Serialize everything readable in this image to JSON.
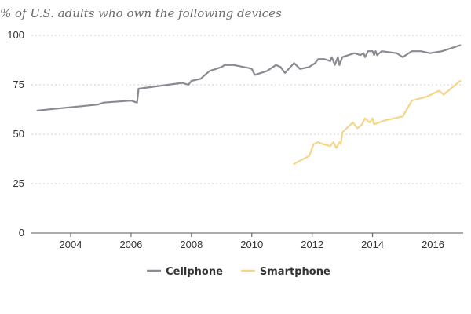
{
  "chart_data": {
    "type": "line",
    "subtitle": "% of U.S. adults who own the following devices",
    "title": "",
    "xlabel": "",
    "ylabel": "",
    "xlim": [
      2002.7,
      2017.0
    ],
    "ylim": [
      0,
      100
    ],
    "x_ticks": [
      2004,
      2006,
      2008,
      2010,
      2012,
      2014,
      2016
    ],
    "y_ticks": [
      0,
      25,
      50,
      75,
      100
    ],
    "grid": true,
    "legend_position": "bottom-center",
    "series": [
      {
        "name": "Cellphone",
        "color": "#8a8a93",
        "points": [
          [
            2002.9,
            62
          ],
          [
            2004.9,
            65
          ],
          [
            2005.1,
            66
          ],
          [
            2006.0,
            67
          ],
          [
            2006.2,
            66
          ],
          [
            2006.25,
            73
          ],
          [
            2007.7,
            76
          ],
          [
            2007.9,
            75
          ],
          [
            2008.0,
            77
          ],
          [
            2008.3,
            78
          ],
          [
            2008.6,
            82
          ],
          [
            2009.0,
            84
          ],
          [
            2009.1,
            85
          ],
          [
            2009.4,
            85
          ],
          [
            2009.9,
            83.5
          ],
          [
            2010.0,
            83
          ],
          [
            2010.1,
            80
          ],
          [
            2010.5,
            82
          ],
          [
            2010.8,
            85
          ],
          [
            2010.95,
            84
          ],
          [
            2011.1,
            81
          ],
          [
            2011.4,
            86
          ],
          [
            2011.6,
            83
          ],
          [
            2011.9,
            84
          ],
          [
            2012.1,
            86
          ],
          [
            2012.2,
            88
          ],
          [
            2012.4,
            88
          ],
          [
            2012.6,
            87
          ],
          [
            2012.65,
            89
          ],
          [
            2012.75,
            85
          ],
          [
            2012.85,
            89
          ],
          [
            2012.9,
            85
          ],
          [
            2013.0,
            89
          ],
          [
            2013.4,
            91
          ],
          [
            2013.6,
            90
          ],
          [
            2013.7,
            91
          ],
          [
            2013.75,
            89
          ],
          [
            2013.85,
            92
          ],
          [
            2014.0,
            92
          ],
          [
            2014.05,
            90
          ],
          [
            2014.1,
            92
          ],
          [
            2014.15,
            90
          ],
          [
            2014.3,
            92
          ],
          [
            2014.8,
            91
          ],
          [
            2015.0,
            89
          ],
          [
            2015.3,
            92
          ],
          [
            2015.6,
            92
          ],
          [
            2015.9,
            91
          ],
          [
            2016.3,
            92
          ],
          [
            2016.9,
            95
          ]
        ]
      },
      {
        "name": "Smartphone",
        "color": "#f5d58a",
        "points": [
          [
            2011.4,
            35
          ],
          [
            2011.9,
            39
          ],
          [
            2012.05,
            45
          ],
          [
            2012.2,
            46
          ],
          [
            2012.35,
            45
          ],
          [
            2012.6,
            44
          ],
          [
            2012.7,
            46
          ],
          [
            2012.8,
            43
          ],
          [
            2012.9,
            46
          ],
          [
            2012.95,
            45
          ],
          [
            2013.0,
            51
          ],
          [
            2013.35,
            56
          ],
          [
            2013.5,
            53
          ],
          [
            2013.65,
            55
          ],
          [
            2013.75,
            58
          ],
          [
            2013.9,
            56
          ],
          [
            2014.0,
            58
          ],
          [
            2014.05,
            55
          ],
          [
            2014.4,
            57
          ],
          [
            2015.0,
            59
          ],
          [
            2015.3,
            67
          ],
          [
            2015.8,
            69
          ],
          [
            2016.2,
            72
          ],
          [
            2016.35,
            70
          ],
          [
            2016.9,
            77
          ]
        ]
      }
    ]
  }
}
